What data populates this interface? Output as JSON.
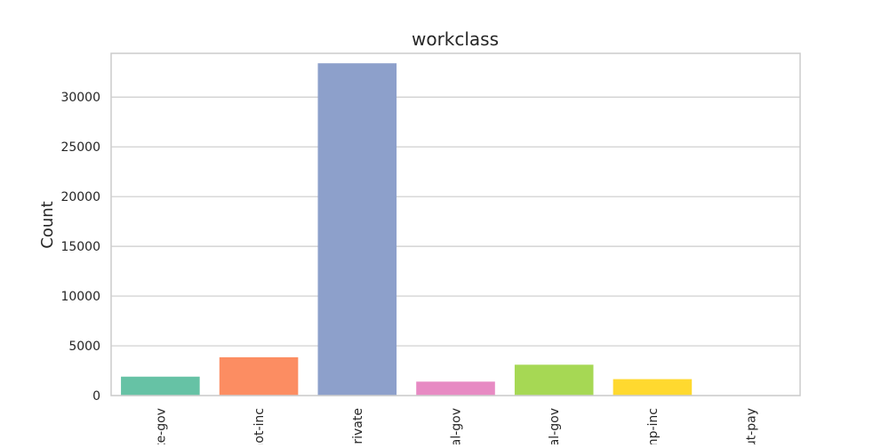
{
  "chart_data": {
    "type": "bar",
    "title": "workclass",
    "xlabel": "",
    "ylabel": "Count",
    "categories": [
      "te-gov",
      "not-inc",
      "Private",
      "al-gov",
      "al-gov",
      "np-inc",
      "ut-pay"
    ],
    "values": [
      1900,
      3850,
      33400,
      1400,
      3100,
      1650,
      20
    ],
    "colors": [
      "#66c2a5",
      "#fc8d62",
      "#8da0cb",
      "#e78ac3",
      "#a6d854",
      "#ffd92f",
      "#e5c494"
    ],
    "yticks": [
      0,
      5000,
      10000,
      15000,
      20000,
      25000,
      30000
    ],
    "ylim": [
      0,
      34400
    ],
    "grid": true,
    "legend": "none"
  }
}
